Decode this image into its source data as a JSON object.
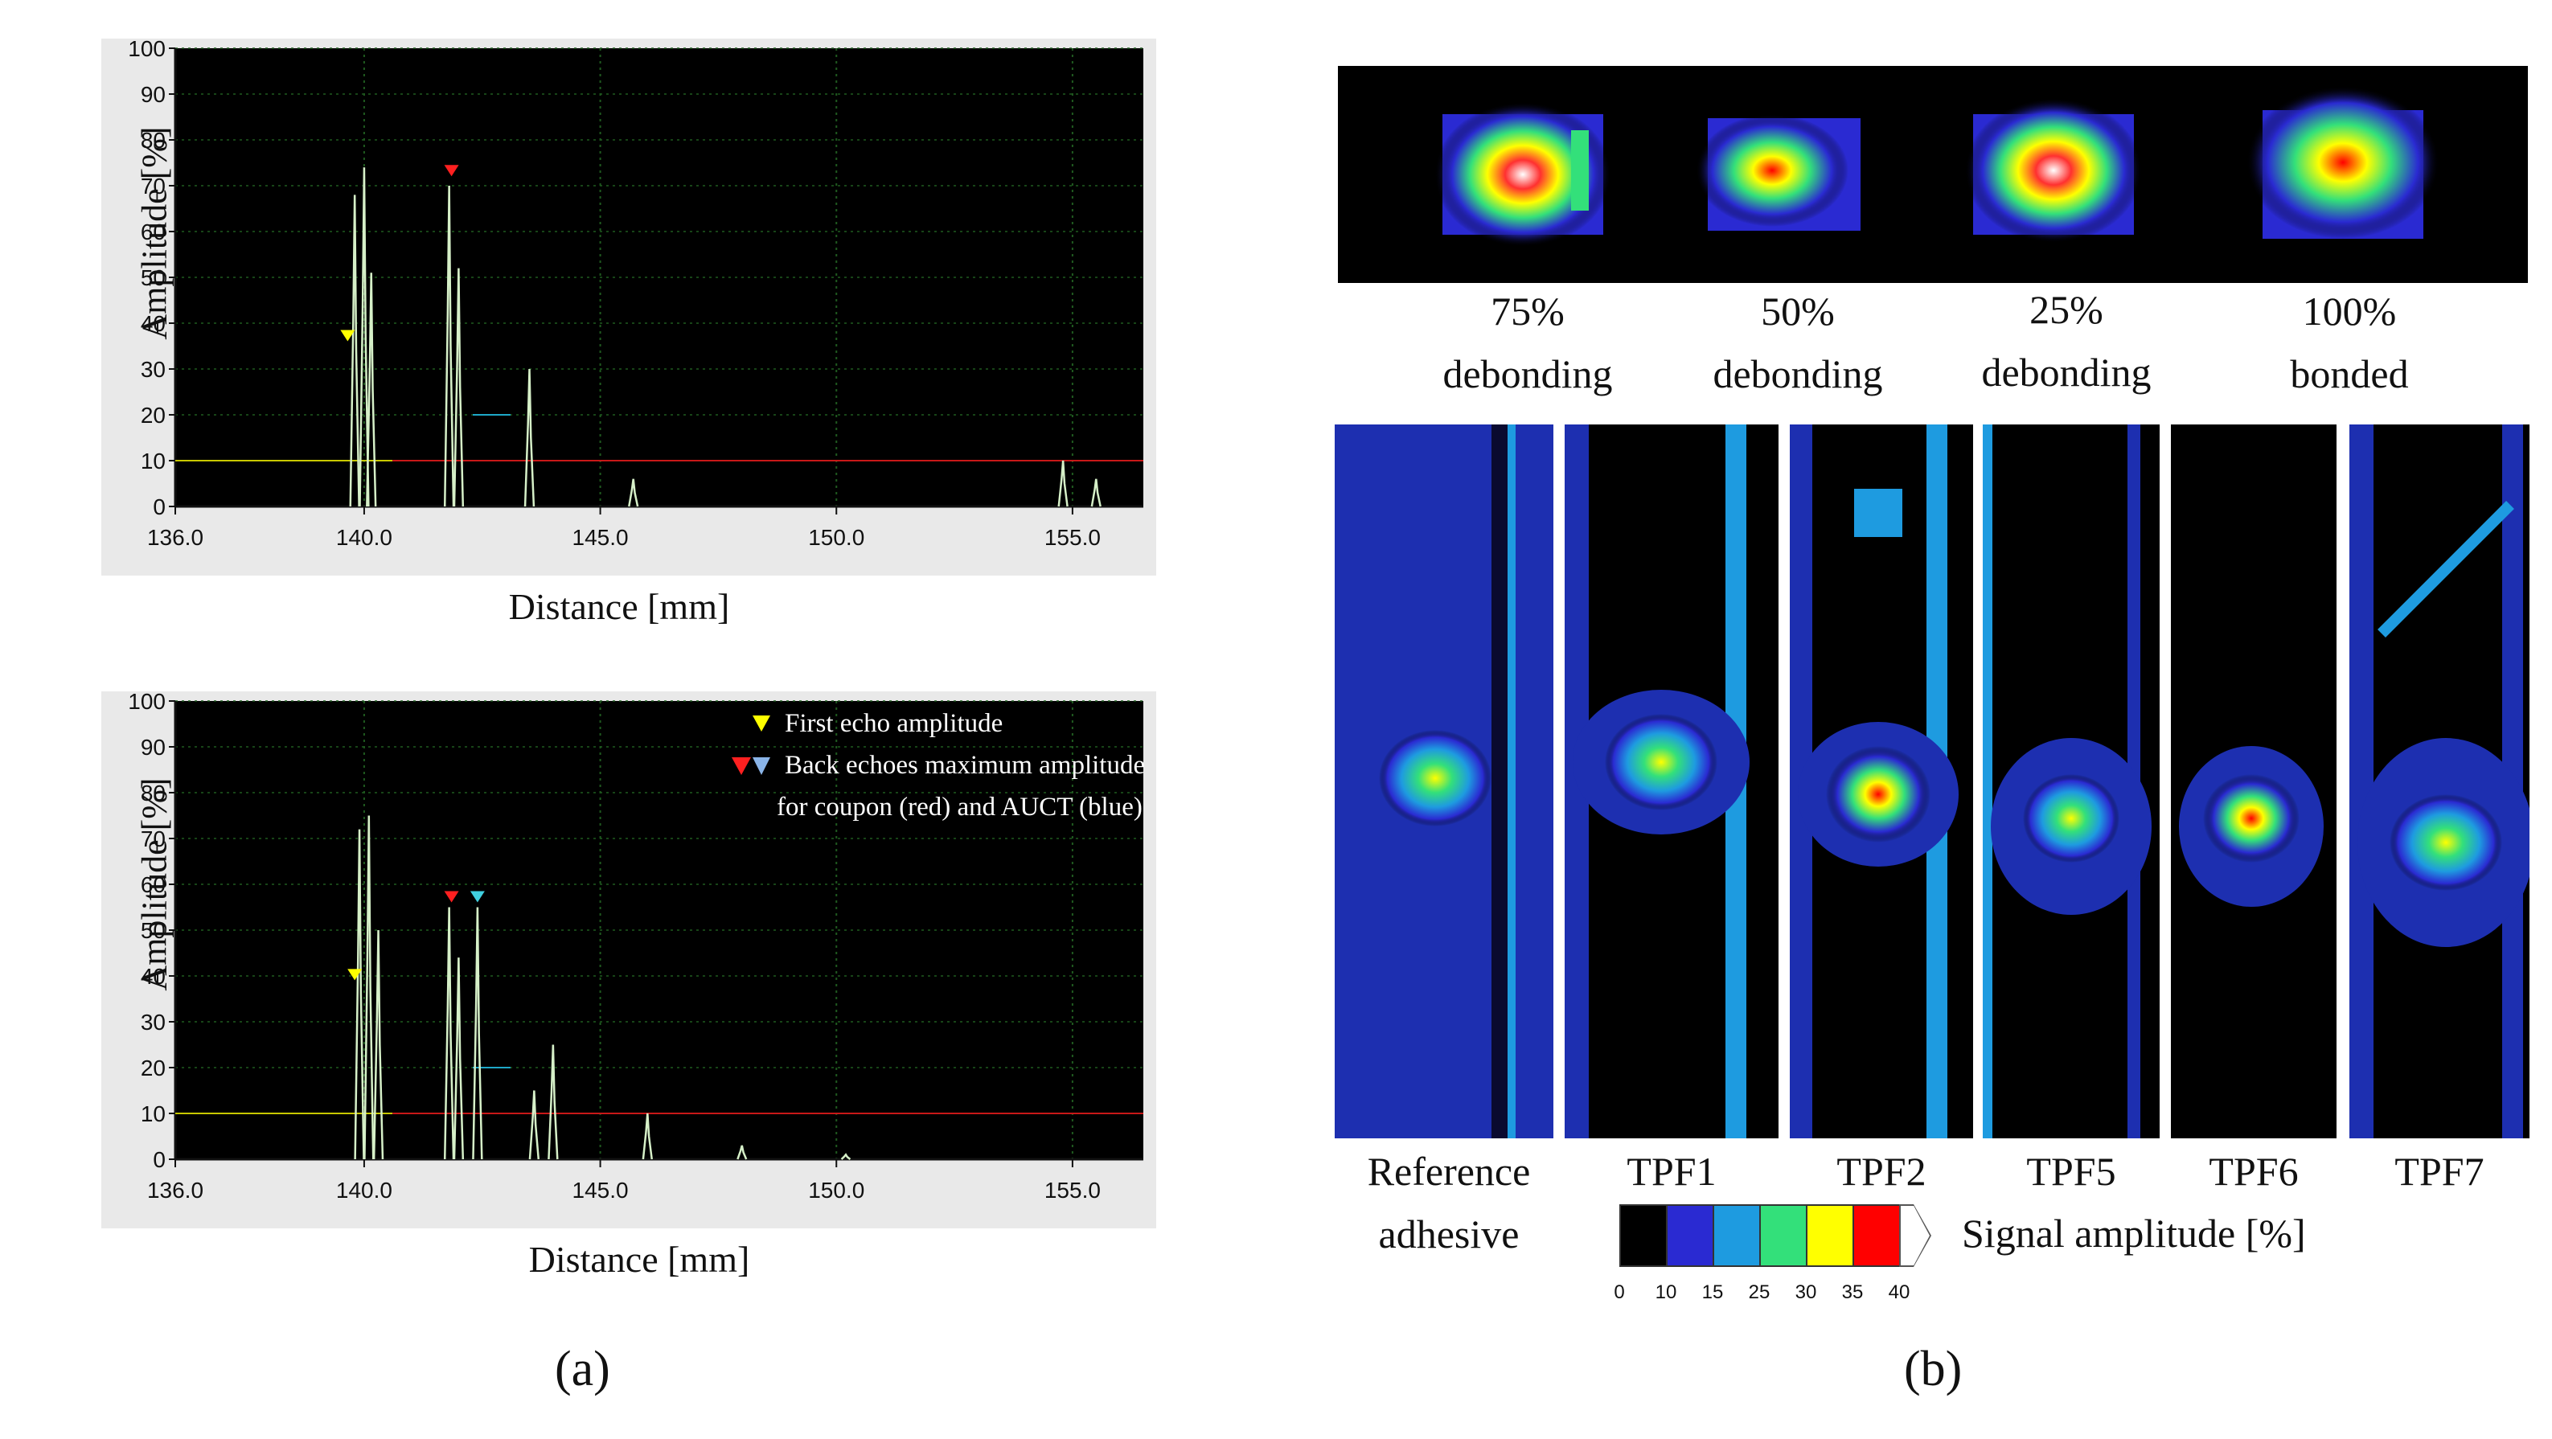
{
  "panel_a": {
    "label": "(a)",
    "charts": [
      {
        "ylabel": "Amplitude  [%]",
        "xlabel": "Distance  [mm]",
        "yticks": [
          "100",
          "90",
          "80",
          "70",
          "60",
          "50",
          "40",
          "30",
          "20",
          "10",
          "0"
        ],
        "xticks": [
          "136.0",
          "140.0",
          "145.0",
          "150.0",
          "155.0"
        ]
      },
      {
        "ylabel": "Amplitude  [%]",
        "xlabel": "Distance  [mm]",
        "yticks": [
          "100",
          "90",
          "80",
          "70",
          "60",
          "50",
          "40",
          "30",
          "20",
          "10",
          "0"
        ],
        "xticks": [
          "136.0",
          "140.0",
          "145.0",
          "150.0",
          "155.0"
        ],
        "legend": {
          "first_echo": "First echo amplitude",
          "back_echo_line1": "Back echoes maximum amplitude",
          "back_echo_line2": "for coupon (red) and AUCT (blue)"
        }
      }
    ]
  },
  "chart_data": [
    {
      "type": "line",
      "xlim": [
        136,
        156.5
      ],
      "ylim": [
        0,
        100
      ],
      "grid": true,
      "thresholds": {
        "yellow_gate": 10,
        "red_gate": 10
      },
      "marker_levels": {
        "first_echo_yellow": 35,
        "back_echo_red": 71
      },
      "peaks": [
        {
          "x": 139.8,
          "y": 68
        },
        {
          "x": 140.0,
          "y": 74
        },
        {
          "x": 140.15,
          "y": 51
        },
        {
          "x": 141.8,
          "y": 70
        },
        {
          "x": 142.0,
          "y": 52
        },
        {
          "x": 143.5,
          "y": 30
        },
        {
          "x": 145.7,
          "y": 6
        },
        {
          "x": 154.8,
          "y": 10
        },
        {
          "x": 155.5,
          "y": 6
        }
      ]
    },
    {
      "type": "line",
      "xlim": [
        136,
        156.5
      ],
      "ylim": [
        0,
        100
      ],
      "grid": true,
      "thresholds": {
        "yellow_gate": 10,
        "red_gate": 10
      },
      "marker_levels": {
        "first_echo_yellow": 38,
        "back_echo_red": 55,
        "back_echo_blue": 55
      },
      "peaks": [
        {
          "x": 139.9,
          "y": 72
        },
        {
          "x": 140.1,
          "y": 75
        },
        {
          "x": 140.3,
          "y": 50
        },
        {
          "x": 141.8,
          "y": 55
        },
        {
          "x": 142.0,
          "y": 44
        },
        {
          "x": 142.4,
          "y": 55
        },
        {
          "x": 143.6,
          "y": 15
        },
        {
          "x": 144.0,
          "y": 25
        },
        {
          "x": 146.0,
          "y": 10
        },
        {
          "x": 148.0,
          "y": 3
        },
        {
          "x": 150.2,
          "y": 1
        }
      ]
    }
  ],
  "panel_b": {
    "label": "(b)",
    "top_captions": [
      {
        "line1": "75%",
        "line2": "debonding"
      },
      {
        "line1": "50%",
        "line2": "debonding"
      },
      {
        "line1": "25%",
        "line2": "debonding"
      },
      {
        "line1": "100%",
        "line2": "bonded"
      }
    ],
    "strips": [
      {
        "line1": "Reference",
        "line2": "adhesive"
      },
      {
        "line1": "TPF1",
        "line2": ""
      },
      {
        "line1": "TPF2",
        "line2": ""
      },
      {
        "line1": "TPF5",
        "line2": ""
      },
      {
        "line1": "TPF6",
        "line2": ""
      },
      {
        "line1": "TPF7",
        "line2": ""
      }
    ],
    "colorbar": {
      "title": "Signal amplitude [%]",
      "ticks": [
        "0",
        "10",
        "15",
        "25",
        "30",
        "35",
        "40"
      ],
      "colors": [
        "#000000",
        "#2a2ad2",
        "#1e9be0",
        "#33e07a",
        "#ffff00",
        "#ff0000",
        "#ffffff"
      ]
    }
  }
}
